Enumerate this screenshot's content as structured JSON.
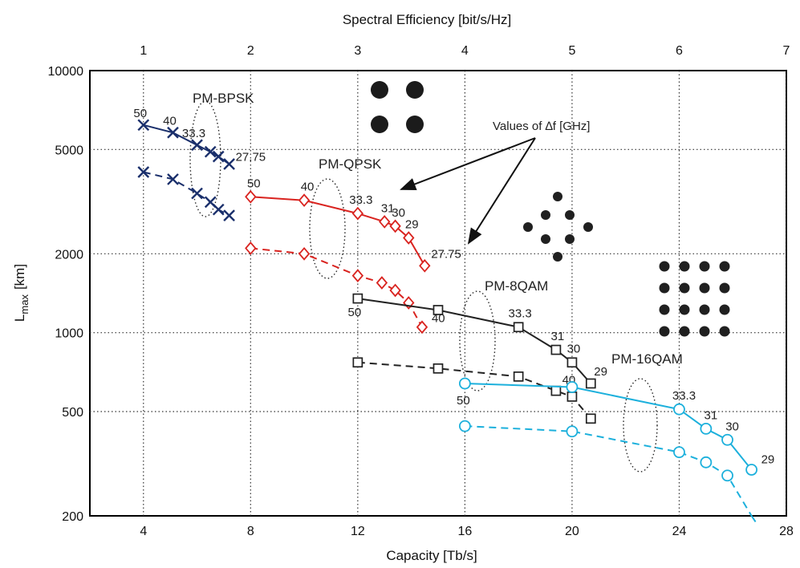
{
  "chart_data": {
    "type": "line",
    "title": "",
    "xlabel": "Capacity [Tb/s]",
    "ylabel_main": "L",
    "ylabel_sub": "max",
    "ylabel_unit": "[km]",
    "top_xlabel": "Spectral Efficiency [bit/s/Hz]",
    "x_ticks": [
      "4",
      "8",
      "12",
      "16",
      "20",
      "24",
      "28"
    ],
    "x_tick_values": [
      4,
      8,
      12,
      16,
      20,
      24,
      28
    ],
    "top_ticks": [
      "1",
      "2",
      "3",
      "4",
      "5",
      "6",
      "7"
    ],
    "top_tick_values": [
      1,
      2,
      3,
      4,
      5,
      6,
      7
    ],
    "y_ticks": [
      "200",
      "500",
      "1000",
      "2000",
      "5000",
      "10000"
    ],
    "y_tick_values": [
      200,
      500,
      1000,
      2000,
      5000,
      10000
    ],
    "xlim": [
      2,
      28
    ],
    "ylim": [
      200,
      10000
    ],
    "top_xlim": [
      0.5,
      7
    ],
    "y_scale": "log",
    "grid": true,
    "modulation_labels": [
      "PM-BPSK",
      "PM-QPSK",
      "PM-8QAM",
      "PM-16QAM"
    ],
    "delta_f_annotation": "Values of ∆f [GHz]",
    "delta_f_values": [
      "50",
      "40",
      "33.3",
      "31",
      "30",
      "29",
      "27.75"
    ],
    "colors": {
      "bpsk": "#1a2f6b",
      "qpsk": "#d9231f",
      "qam8": "#222222",
      "qam16": "#1cb0dc"
    },
    "series": [
      {
        "group": "PM-BPSK",
        "style": "solid",
        "marker": "x",
        "color": "#1a2f6b",
        "x": [
          4,
          5.1,
          6.0,
          6.5,
          6.8,
          7.2
        ],
        "y": [
          6200,
          5800,
          5200,
          4900,
          4700,
          4400
        ],
        "point_labels": [
          "50",
          "40",
          "33.3",
          "",
          "",
          "27.75"
        ]
      },
      {
        "group": "PM-BPSK",
        "style": "dashed",
        "marker": "x",
        "color": "#1a2f6b",
        "x": [
          4,
          5.1,
          6.0,
          6.5,
          6.8,
          7.2
        ],
        "y": [
          4100,
          3850,
          3400,
          3150,
          2950,
          2800
        ],
        "point_labels": []
      },
      {
        "group": "PM-QPSK",
        "style": "solid",
        "marker": "diamond",
        "color": "#d9231f",
        "x": [
          8,
          10,
          12,
          13,
          13.4,
          13.9,
          14.5
        ],
        "y": [
          3300,
          3200,
          2850,
          2650,
          2550,
          2300,
          1800
        ],
        "point_labels": [
          "50",
          "40",
          "33.3",
          "31",
          "30",
          "29",
          "27.75"
        ]
      },
      {
        "group": "PM-QPSK",
        "style": "dashed",
        "marker": "diamond",
        "color": "#d9231f",
        "x": [
          8,
          10,
          12,
          12.9,
          13.4,
          13.9,
          14.4
        ],
        "y": [
          2100,
          2000,
          1650,
          1550,
          1450,
          1300,
          1050
        ],
        "point_labels": [
          "",
          "",
          "",
          "",
          "",
          "",
          "40"
        ]
      },
      {
        "group": "PM-8QAM",
        "style": "solid",
        "marker": "square",
        "color": "#222222",
        "x": [
          12,
          15,
          18,
          19.4,
          20,
          20.7
        ],
        "y": [
          1350,
          1220,
          1050,
          860,
          770,
          640
        ],
        "point_labels": [
          "50",
          "",
          "33.3",
          "31",
          "30",
          "29"
        ]
      },
      {
        "group": "PM-8QAM",
        "style": "dashed",
        "marker": "square",
        "color": "#222222",
        "x": [
          12,
          15,
          18,
          19.4,
          20,
          20.7
        ],
        "y": [
          770,
          730,
          680,
          600,
          570,
          470
        ],
        "point_labels": [
          "",
          "",
          "",
          "",
          "40",
          ""
        ]
      },
      {
        "group": "PM-16QAM",
        "style": "solid",
        "marker": "circle",
        "color": "#1cb0dc",
        "x": [
          16,
          20,
          24,
          25,
          25.8,
          26.7
        ],
        "y": [
          640,
          620,
          510,
          430,
          390,
          300
        ],
        "point_labels": [
          "50",
          "",
          "33.3",
          "31",
          "30",
          "29"
        ]
      },
      {
        "group": "PM-16QAM",
        "style": "dashed",
        "marker": "circle",
        "color": "#1cb0dc",
        "x": [
          16,
          20,
          24,
          25,
          25.8,
          26.7
        ],
        "y": [
          440,
          420,
          350,
          320,
          285,
          200
        ],
        "point_labels": []
      }
    ]
  }
}
